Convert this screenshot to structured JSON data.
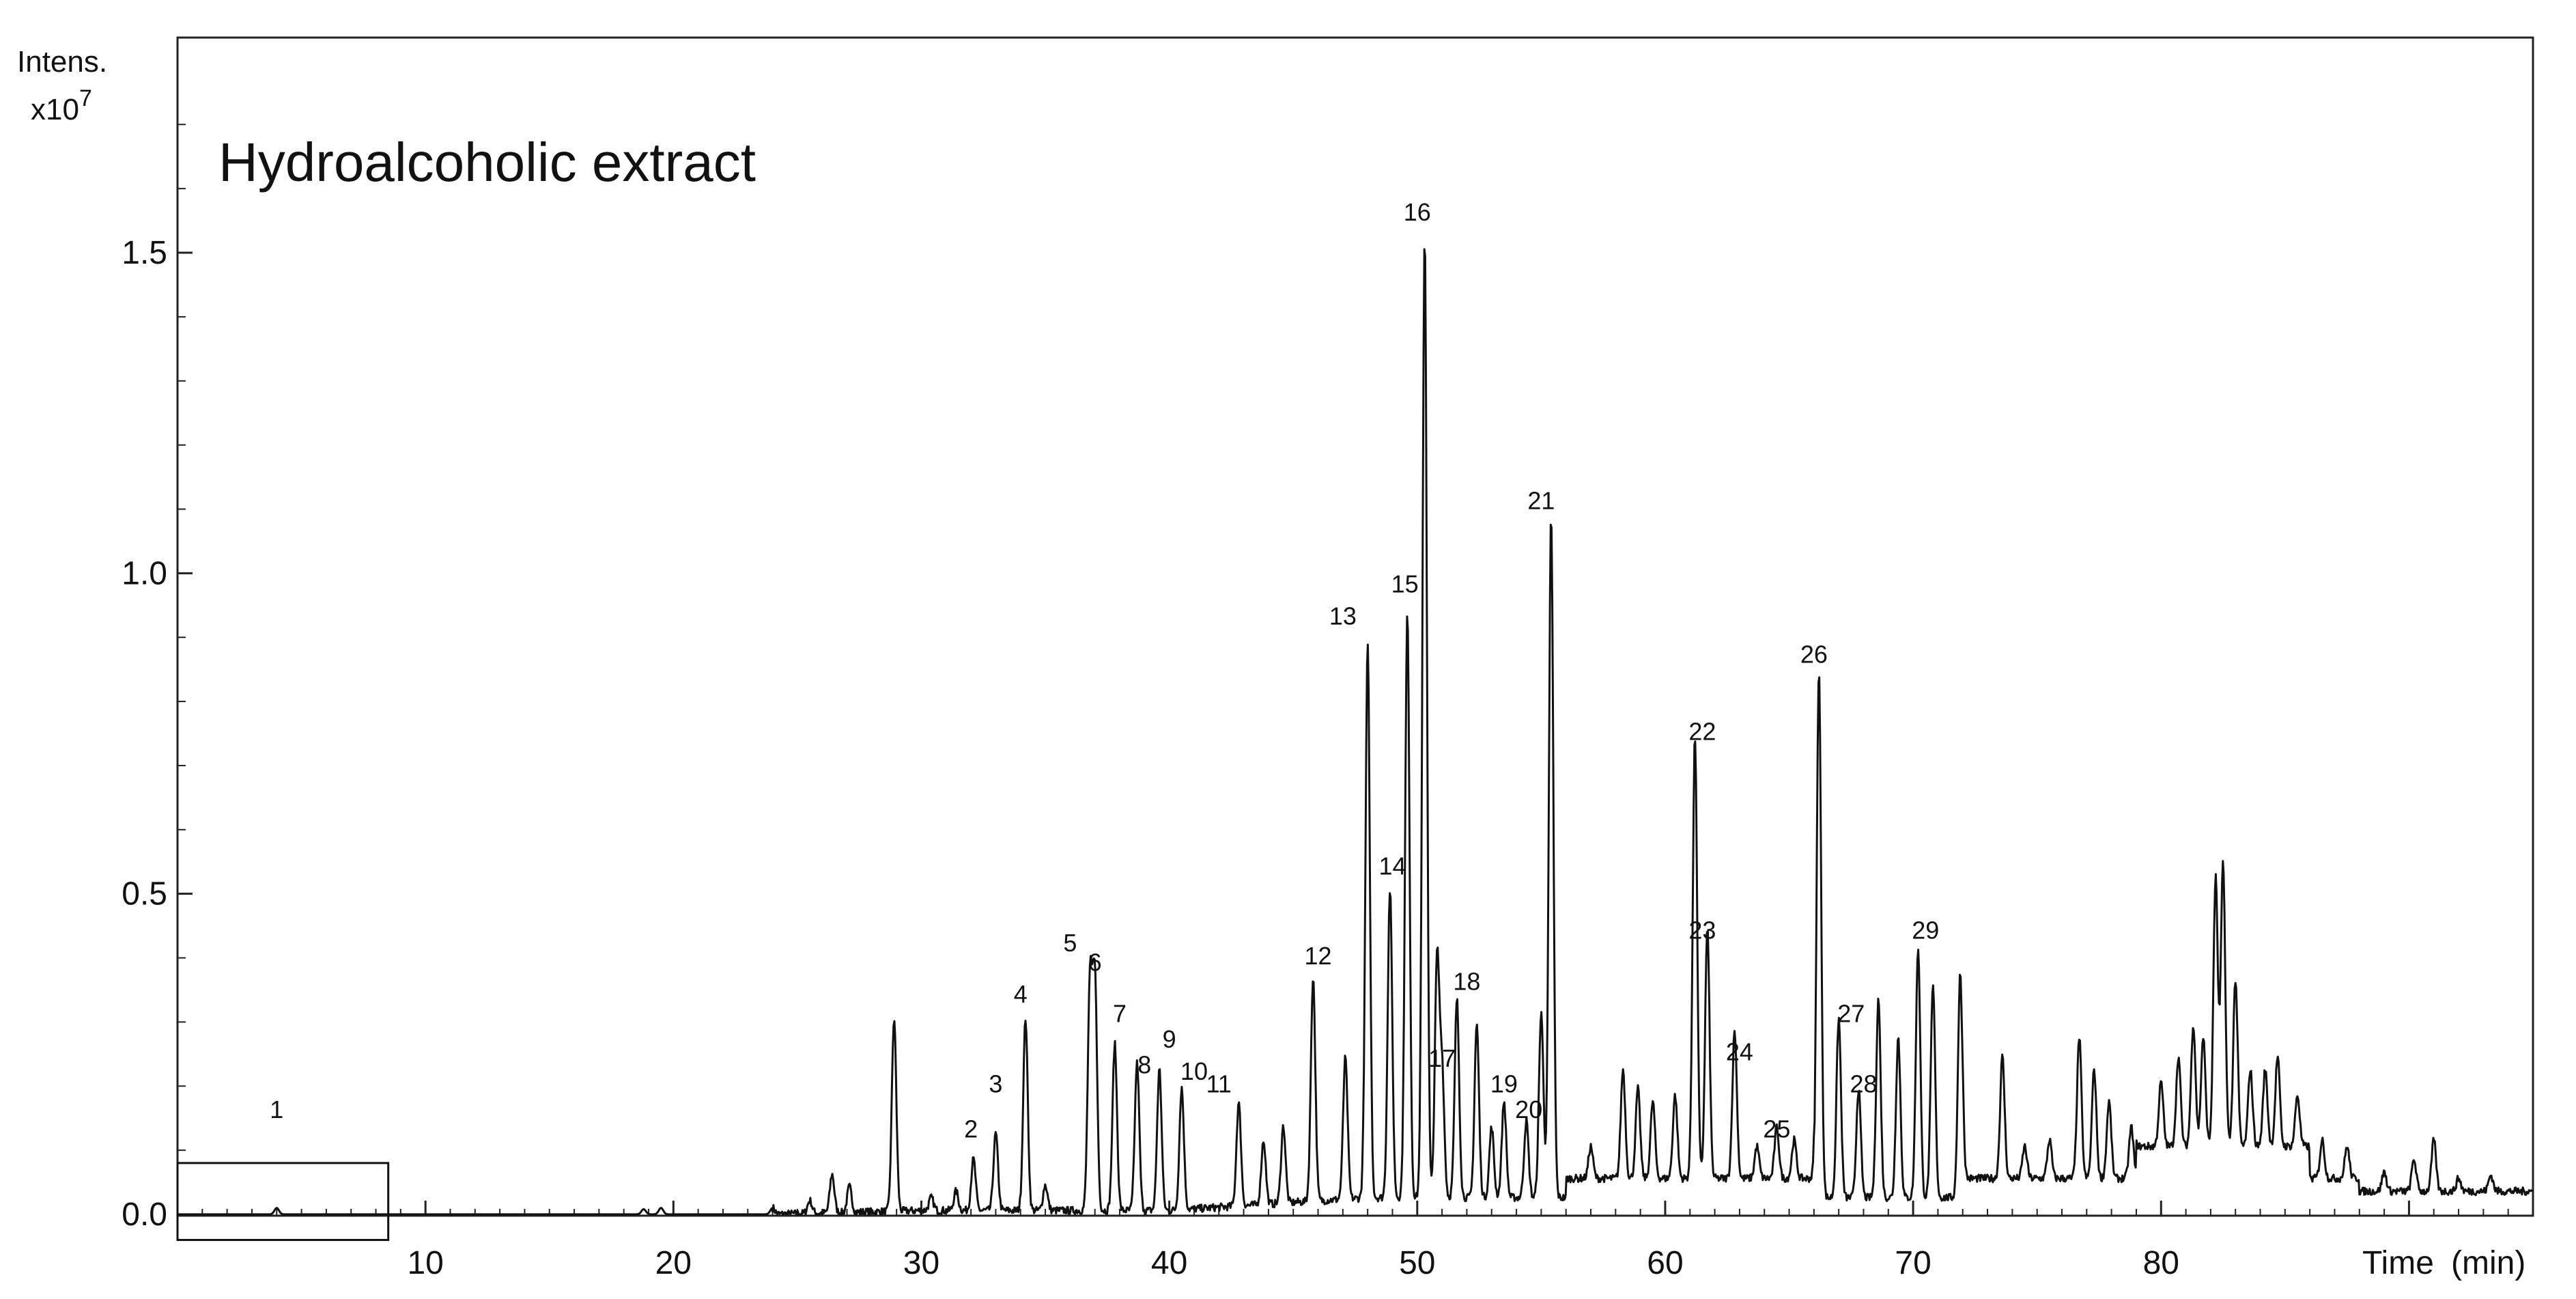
{
  "chart_data": {
    "type": "line",
    "title": "Hydroalcoholic extract",
    "ylabel": "Intens.",
    "yscale_label": "x10",
    "yscale_exp": "7",
    "xlabel": "Time",
    "xunit": "(min)",
    "xlim": [
      0,
      95
    ],
    "ylim": [
      0,
      1.75
    ],
    "x_ticks": [
      10,
      20,
      30,
      40,
      50,
      60,
      70,
      80
    ],
    "y_ticks": [
      "0.0",
      "0.5",
      "1.0",
      "1.5"
    ],
    "y_tick_values": [
      0.0,
      0.5,
      1.0,
      1.5
    ],
    "grid": false,
    "highlight_box": {
      "x": [
        0,
        8.5
      ],
      "y": [
        -0.04,
        0.08
      ]
    },
    "peaks": [
      {
        "label": "1",
        "x": 4.0,
        "y": 0.01,
        "label_x": 4.0,
        "label_y": 0.15
      },
      {
        "label": "2",
        "x": 32.1,
        "y": 0.08,
        "label_x": 32.0,
        "label_y": 0.12
      },
      {
        "label": "3",
        "x": 33.0,
        "y": 0.12,
        "label_x": 33.0,
        "label_y": 0.19
      },
      {
        "label": "4",
        "x": 34.2,
        "y": 0.3,
        "label_x": 34.0,
        "label_y": 0.33
      },
      {
        "label": "5",
        "x": 36.8,
        "y": 0.35,
        "label_x": 36.0,
        "label_y": 0.41
      },
      {
        "label": "6",
        "x": 37.0,
        "y": 0.36,
        "label_x": 37.0,
        "label_y": 0.38
      },
      {
        "label": "7",
        "x": 37.8,
        "y": 0.26,
        "label_x": 38.0,
        "label_y": 0.3
      },
      {
        "label": "8",
        "x": 38.7,
        "y": 0.23,
        "label_x": 39.0,
        "label_y": 0.22
      },
      {
        "label": "9",
        "x": 39.6,
        "y": 0.22,
        "label_x": 40.0,
        "label_y": 0.26
      },
      {
        "label": "10",
        "x": 40.5,
        "y": 0.19,
        "label_x": 41.0,
        "label_y": 0.21
      },
      {
        "label": "11",
        "x": 42.8,
        "y": 0.16,
        "label_x": 42.0,
        "label_y": 0.19
      },
      {
        "label": "12",
        "x": 45.8,
        "y": 0.35,
        "label_x": 46.0,
        "label_y": 0.39
      },
      {
        "label": "13",
        "x": 48.0,
        "y": 0.86,
        "label_x": 47.0,
        "label_y": 0.92
      },
      {
        "label": "14",
        "x": 48.9,
        "y": 0.48,
        "label_x": 49.0,
        "label_y": 0.53
      },
      {
        "label": "15",
        "x": 49.6,
        "y": 0.91,
        "label_x": 49.5,
        "label_y": 0.97
      },
      {
        "label": "16",
        "x": 50.3,
        "y": 1.5,
        "label_x": 50.0,
        "label_y": 1.55
      },
      {
        "label": "17",
        "x": 51.0,
        "y": 0.2,
        "label_x": 51.0,
        "label_y": 0.23
      },
      {
        "label": "18",
        "x": 51.6,
        "y": 0.31,
        "label_x": 52.0,
        "label_y": 0.35
      },
      {
        "label": "19",
        "x": 53.5,
        "y": 0.15,
        "label_x": 53.5,
        "label_y": 0.19
      },
      {
        "label": "20",
        "x": 54.4,
        "y": 0.12,
        "label_x": 54.5,
        "label_y": 0.15
      },
      {
        "label": "21",
        "x": 55.4,
        "y": 1.06,
        "label_x": 55.0,
        "label_y": 1.1
      },
      {
        "label": "22",
        "x": 61.2,
        "y": 0.69,
        "label_x": 61.5,
        "label_y": 0.74
      },
      {
        "label": "23",
        "x": 61.7,
        "y": 0.39,
        "label_x": 61.5,
        "label_y": 0.43
      },
      {
        "label": "24",
        "x": 62.8,
        "y": 0.23,
        "label_x": 63.0,
        "label_y": 0.24
      },
      {
        "label": "25",
        "x": 64.5,
        "y": 0.08,
        "label_x": 64.5,
        "label_y": 0.12
      },
      {
        "label": "26",
        "x": 66.2,
        "y": 0.82,
        "label_x": 66.0,
        "label_y": 0.86
      },
      {
        "label": "27",
        "x": 67.0,
        "y": 0.28,
        "label_x": 67.5,
        "label_y": 0.3
      },
      {
        "label": "28",
        "x": 67.8,
        "y": 0.17,
        "label_x": 68.0,
        "label_y": 0.19
      },
      {
        "label": "29",
        "x": 70.2,
        "y": 0.39,
        "label_x": 70.5,
        "label_y": 0.43
      }
    ],
    "extra_peaks": [
      [
        18.8,
        0.008
      ],
      [
        19.5,
        0.01
      ],
      [
        24.0,
        0.01
      ],
      [
        25.5,
        0.02
      ],
      [
        26.4,
        0.06
      ],
      [
        27.1,
        0.04
      ],
      [
        28.9,
        0.3
      ],
      [
        30.4,
        0.02
      ],
      [
        31.4,
        0.03
      ],
      [
        35.0,
        0.04
      ],
      [
        43.8,
        0.1
      ],
      [
        44.6,
        0.12
      ],
      [
        47.1,
        0.22
      ],
      [
        50.8,
        0.37
      ],
      [
        52.4,
        0.27
      ],
      [
        53.0,
        0.11
      ],
      [
        55.0,
        0.29
      ],
      [
        57.0,
        0.05
      ],
      [
        58.3,
        0.17
      ],
      [
        58.9,
        0.14
      ],
      [
        59.5,
        0.12
      ],
      [
        60.4,
        0.13
      ],
      [
        63.7,
        0.05
      ],
      [
        65.2,
        0.06
      ],
      [
        68.6,
        0.31
      ],
      [
        69.4,
        0.25
      ],
      [
        70.8,
        0.33
      ],
      [
        71.9,
        0.35
      ],
      [
        73.6,
        0.19
      ],
      [
        74.5,
        0.05
      ],
      [
        75.5,
        0.06
      ],
      [
        76.7,
        0.22
      ],
      [
        77.3,
        0.17
      ],
      [
        77.9,
        0.12
      ],
      [
        78.8,
        0.08
      ],
      [
        80.0,
        0.1
      ],
      [
        80.7,
        0.14
      ],
      [
        81.3,
        0.19
      ],
      [
        81.7,
        0.17
      ],
      [
        82.2,
        0.42
      ],
      [
        82.5,
        0.44
      ],
      [
        83.0,
        0.26
      ],
      [
        83.6,
        0.12
      ],
      [
        84.2,
        0.12
      ],
      [
        84.7,
        0.14
      ],
      [
        85.5,
        0.08
      ],
      [
        86.5,
        0.06
      ],
      [
        87.5,
        0.05
      ],
      [
        89.0,
        0.03
      ],
      [
        90.2,
        0.05
      ],
      [
        91.0,
        0.08
      ],
      [
        92.0,
        0.02
      ],
      [
        93.3,
        0.025
      ]
    ]
  }
}
